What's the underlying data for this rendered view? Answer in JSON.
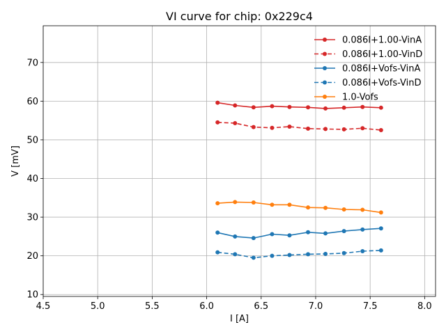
{
  "chart_data": {
    "type": "line",
    "title": "VI curve for chip: 0x229c4",
    "xlabel": "I [A]",
    "ylabel": "V [mV]",
    "xlim": [
      4.5,
      8.1
    ],
    "ylim": [
      9.5,
      79.5
    ],
    "xticks": [
      4.5,
      5.0,
      5.5,
      6.0,
      6.5,
      7.0,
      7.5,
      8.0
    ],
    "xtick_labels": [
      "4.5",
      "5.0",
      "5.5",
      "6.0",
      "6.5",
      "7.0",
      "7.5",
      "8.0"
    ],
    "yticks": [
      10,
      20,
      30,
      40,
      50,
      60,
      70
    ],
    "ytick_labels": [
      "10",
      "20",
      "30",
      "40",
      "50",
      "60",
      "70"
    ],
    "grid": true,
    "legend_position": "top-right",
    "x": [
      6.1,
      6.26,
      6.43,
      6.6,
      6.76,
      6.93,
      7.09,
      7.26,
      7.43,
      7.6
    ],
    "series": [
      {
        "name": "0.086I+1.00-VinA",
        "color": "#d62728",
        "dashed": false,
        "values": [
          59.6,
          58.9,
          58.4,
          58.7,
          58.5,
          58.4,
          58.1,
          58.3,
          58.5,
          58.3
        ]
      },
      {
        "name": "0.086I+1.00-VinD",
        "color": "#d62728",
        "dashed": true,
        "values": [
          54.5,
          54.3,
          53.3,
          53.1,
          53.4,
          52.9,
          52.8,
          52.7,
          53.0,
          52.5
        ]
      },
      {
        "name": "0.086I+Vofs-VinA",
        "color": "#1f77b4",
        "dashed": false,
        "values": [
          26.0,
          25.0,
          24.6,
          25.6,
          25.3,
          26.1,
          25.8,
          26.4,
          26.8,
          27.1
        ]
      },
      {
        "name": "0.086I+Vofs-VinD",
        "color": "#1f77b4",
        "dashed": true,
        "values": [
          20.9,
          20.4,
          19.5,
          20.0,
          20.2,
          20.4,
          20.5,
          20.7,
          21.2,
          21.4
        ]
      },
      {
        "name": "1.0-Vofs",
        "color": "#ff7f0e",
        "dashed": false,
        "values": [
          33.6,
          33.9,
          33.8,
          33.2,
          33.2,
          32.5,
          32.4,
          32.0,
          31.9,
          31.2
        ]
      }
    ]
  }
}
